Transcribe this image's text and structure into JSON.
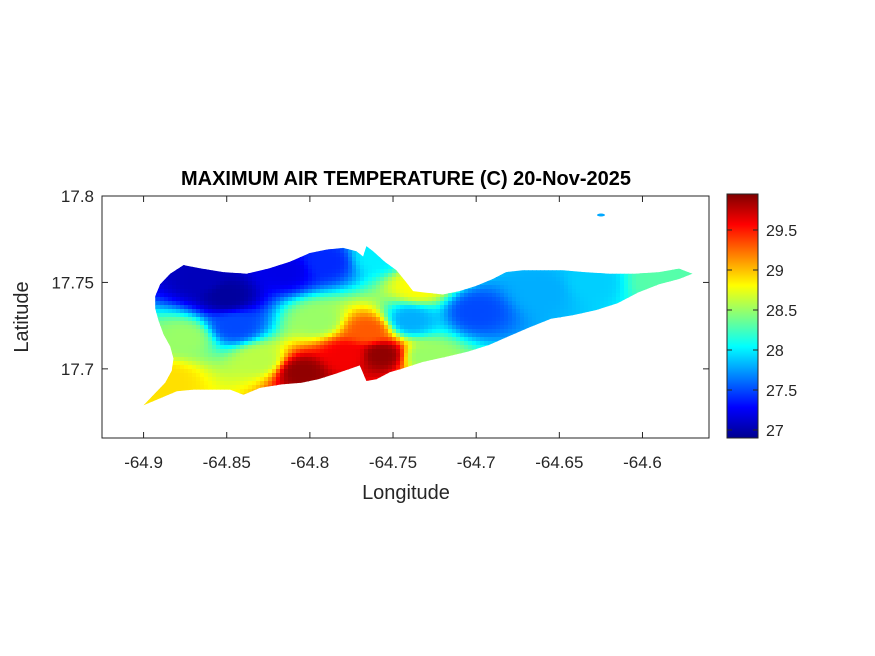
{
  "chart_data": {
    "type": "heatmap",
    "title": "MAXIMUM AIR TEMPERATURE (C) 20-Nov-2025",
    "xlabel": "Longitude",
    "ylabel": "Latitude",
    "xlim": [
      -64.925,
      -64.56
    ],
    "ylim": [
      17.66,
      17.8
    ],
    "xticks": [
      -64.9,
      -64.85,
      -64.8,
      -64.75,
      -64.7,
      -64.65,
      -64.6
    ],
    "xtick_labels": [
      "-64.9",
      "-64.85",
      "-64.8",
      "-64.75",
      "-64.7",
      "-64.65",
      "-64.6"
    ],
    "yticks": [
      17.7,
      17.75,
      17.8
    ],
    "ytick_labels": [
      "17.7",
      "17.75",
      "17.8"
    ],
    "grid": false,
    "colormap": "jet",
    "colorbar": {
      "range": [
        26.9,
        29.95
      ],
      "ticks": [
        27,
        27.5,
        28,
        28.5,
        29,
        29.5
      ],
      "tick_labels": [
        "27",
        "27.5",
        "28",
        "28.5",
        "29",
        "29.5"
      ],
      "colors": [
        "#00008f",
        "#0000ff",
        "#0080ff",
        "#00ffff",
        "#80ff80",
        "#ffff00",
        "#ff8000",
        "#ff0000",
        "#800000"
      ]
    },
    "island_outline": [
      [
        -64.9,
        17.679
      ],
      [
        -64.893,
        17.686
      ],
      [
        -64.887,
        17.692
      ],
      [
        -64.883,
        17.699
      ],
      [
        -64.882,
        17.706
      ],
      [
        -64.884,
        17.713
      ],
      [
        -64.888,
        17.72
      ],
      [
        -64.891,
        17.728
      ],
      [
        -64.893,
        17.735
      ],
      [
        -64.893,
        17.742
      ],
      [
        -64.89,
        17.749
      ],
      [
        -64.884,
        17.755
      ],
      [
        -64.876,
        17.76
      ],
      [
        -64.865,
        17.758
      ],
      [
        -64.852,
        17.756
      ],
      [
        -64.838,
        17.755
      ],
      [
        -64.825,
        17.758
      ],
      [
        -64.812,
        17.762
      ],
      [
        -64.8,
        17.767
      ],
      [
        -64.79,
        17.769
      ],
      [
        -64.78,
        17.77
      ],
      [
        -64.772,
        17.768
      ],
      [
        -64.768,
        17.765
      ],
      [
        -64.766,
        17.771
      ],
      [
        -64.762,
        17.768
      ],
      [
        -64.755,
        17.762
      ],
      [
        -64.748,
        17.757
      ],
      [
        -64.742,
        17.75
      ],
      [
        -64.738,
        17.745
      ],
      [
        -64.73,
        17.744
      ],
      [
        -64.72,
        17.743
      ],
      [
        -64.71,
        17.745
      ],
      [
        -64.7,
        17.748
      ],
      [
        -64.69,
        17.752
      ],
      [
        -64.682,
        17.756
      ],
      [
        -64.672,
        17.757
      ],
      [
        -64.66,
        17.757
      ],
      [
        -64.648,
        17.757
      ],
      [
        -64.635,
        17.756
      ],
      [
        -64.62,
        17.755
      ],
      [
        -64.605,
        17.755
      ],
      [
        -64.59,
        17.756
      ],
      [
        -64.578,
        17.758
      ],
      [
        -64.57,
        17.755
      ],
      [
        -64.578,
        17.752
      ],
      [
        -64.59,
        17.749
      ],
      [
        -64.603,
        17.744
      ],
      [
        -64.615,
        17.738
      ],
      [
        -64.628,
        17.734
      ],
      [
        -64.642,
        17.731
      ],
      [
        -64.655,
        17.729
      ],
      [
        -64.668,
        17.724
      ],
      [
        -64.68,
        17.719
      ],
      [
        -64.692,
        17.714
      ],
      [
        -64.705,
        17.71
      ],
      [
        -64.718,
        17.707
      ],
      [
        -64.732,
        17.704
      ],
      [
        -64.745,
        17.7
      ],
      [
        -64.752,
        17.698
      ],
      [
        -64.76,
        17.694
      ],
      [
        -64.766,
        17.693
      ],
      [
        -64.77,
        17.702
      ],
      [
        -64.776,
        17.7
      ],
      [
        -64.785,
        17.697
      ],
      [
        -64.795,
        17.694
      ],
      [
        -64.805,
        17.692
      ],
      [
        -64.817,
        17.691
      ],
      [
        -64.83,
        17.689
      ],
      [
        -64.84,
        17.685
      ],
      [
        -64.848,
        17.688
      ],
      [
        -64.858,
        17.688
      ],
      [
        -64.87,
        17.688
      ],
      [
        -64.88,
        17.687
      ],
      [
        -64.89,
        17.683
      ],
      [
        -64.9,
        17.679
      ]
    ],
    "temperature_centers": [
      {
        "lon": -64.85,
        "lat": 17.742,
        "value": 26.95
      },
      {
        "lon": -64.865,
        "lat": 17.752,
        "value": 27.05
      },
      {
        "lon": -64.815,
        "lat": 17.757,
        "value": 27.2
      },
      {
        "lon": -64.79,
        "lat": 17.762,
        "value": 27.4
      },
      {
        "lon": -64.845,
        "lat": 17.725,
        "value": 27.5
      },
      {
        "lon": -64.7,
        "lat": 17.733,
        "value": 27.5
      },
      {
        "lon": -64.66,
        "lat": 17.745,
        "value": 27.8
      },
      {
        "lon": -64.63,
        "lat": 17.75,
        "value": 27.9
      },
      {
        "lon": -64.74,
        "lat": 17.728,
        "value": 27.8
      },
      {
        "lon": -64.59,
        "lat": 17.751,
        "value": 28.3
      },
      {
        "lon": -64.76,
        "lat": 17.765,
        "value": 28.0
      },
      {
        "lon": -64.83,
        "lat": 17.705,
        "value": 28.6
      },
      {
        "lon": -64.875,
        "lat": 17.718,
        "value": 28.5
      },
      {
        "lon": -64.885,
        "lat": 17.693,
        "value": 28.9
      },
      {
        "lon": -64.795,
        "lat": 17.728,
        "value": 28.5
      },
      {
        "lon": -64.73,
        "lat": 17.707,
        "value": 28.5
      },
      {
        "lon": -64.735,
        "lat": 17.748,
        "value": 28.8
      },
      {
        "lon": -64.805,
        "lat": 17.698,
        "value": 29.9
      },
      {
        "lon": -64.778,
        "lat": 17.708,
        "value": 29.6
      },
      {
        "lon": -64.757,
        "lat": 17.708,
        "value": 29.9
      },
      {
        "lon": -64.765,
        "lat": 17.722,
        "value": 29.3
      }
    ]
  }
}
